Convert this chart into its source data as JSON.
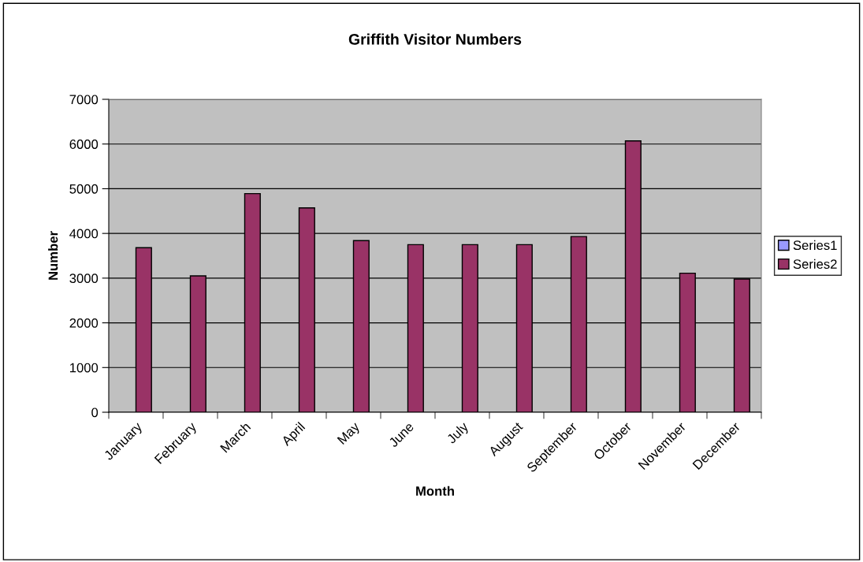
{
  "chart_data": {
    "type": "bar",
    "title": "Griffith Visitor Numbers",
    "xlabel": "Month",
    "ylabel": "Number",
    "categories": [
      "January",
      "February",
      "March",
      "April",
      "May",
      "June",
      "July",
      "August",
      "September",
      "October",
      "November",
      "December"
    ],
    "series": [
      {
        "name": "Series1",
        "color": "#9999ff",
        "values": [
          null,
          null,
          null,
          null,
          null,
          null,
          null,
          null,
          null,
          null,
          null,
          null
        ]
      },
      {
        "name": "Series2",
        "color": "#993366",
        "values": [
          3680,
          3050,
          4890,
          4570,
          3840,
          3750,
          3750,
          3750,
          3930,
          6070,
          3110,
          2980
        ]
      }
    ],
    "ylim": [
      0,
      7000
    ],
    "yticks": [
      0,
      1000,
      2000,
      3000,
      4000,
      5000,
      6000,
      7000
    ],
    "grid": "y",
    "legend": "right"
  }
}
